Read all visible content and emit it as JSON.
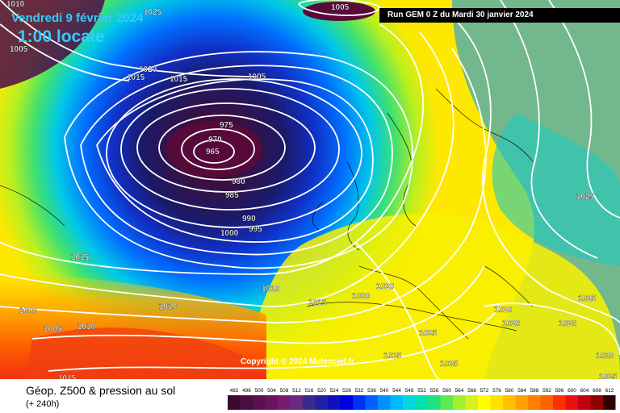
{
  "header": {
    "date": "Vendredi 9 février 2024",
    "time": "1:00 locale",
    "run": "Run GEM 0 Z du Mardi 30 janvier 2024"
  },
  "map": {
    "copyright": "Copyright © 2024 Meteociel.fr",
    "pressure_labels": [
      {
        "text": "1010"
      },
      {
        "text": "1025"
      },
      {
        "text": "1005"
      },
      {
        "text": "1005"
      },
      {
        "text": "1020"
      },
      {
        "text": "1015"
      },
      {
        "text": "1015"
      },
      {
        "text": "1005"
      },
      {
        "text": "975"
      },
      {
        "text": "970"
      },
      {
        "text": "965"
      },
      {
        "text": "980"
      },
      {
        "text": "985"
      },
      {
        "text": "990"
      },
      {
        "text": "995"
      },
      {
        "text": "1000"
      },
      {
        "text": "1015"
      },
      {
        "text": "1010"
      },
      {
        "text": "1010"
      },
      {
        "text": "1000"
      },
      {
        "text": "1005"
      },
      {
        "text": "1010"
      },
      {
        "text": "1015"
      },
      {
        "text": "1020"
      },
      {
        "text": "1020"
      },
      {
        "text": "1025"
      },
      {
        "text": "1025"
      },
      {
        "text": "1025"
      },
      {
        "text": "1025"
      },
      {
        "text": "1020"
      },
      {
        "text": "1020"
      },
      {
        "text": "1020"
      },
      {
        "text": "1025"
      },
      {
        "text": "1020"
      },
      {
        "text": "1015"
      },
      {
        "text": "1025"
      }
    ]
  },
  "footer": {
    "title": "Géop. Z500 & pression au sol",
    "subtitle": "(+ 240h)"
  },
  "legend": {
    "values": [
      "492",
      "496",
      "500",
      "504",
      "508",
      "512",
      "516",
      "520",
      "524",
      "528",
      "532",
      "536",
      "540",
      "544",
      "548",
      "552",
      "556",
      "560",
      "564",
      "568",
      "572",
      "576",
      "580",
      "584",
      "588",
      "592",
      "596",
      "600",
      "604",
      "608",
      "612"
    ],
    "colors": [
      "#3a0a30",
      "#4a0d40",
      "#5a1050",
      "#6a1460",
      "#7a1a70",
      "#6a2a80",
      "#3a2a90",
      "#2020a0",
      "#1010c0",
      "#0000e0",
      "#0030f0",
      "#0060ff",
      "#0090ff",
      "#00b8ff",
      "#00d8e0",
      "#00e0b0",
      "#20e080",
      "#60e850",
      "#a0f030",
      "#d8f020",
      "#ffff00",
      "#ffe000",
      "#ffc000",
      "#ffa000",
      "#ff8000",
      "#ff6000",
      "#ff3000",
      "#e81010",
      "#c00010",
      "#900000",
      "#300000"
    ]
  }
}
